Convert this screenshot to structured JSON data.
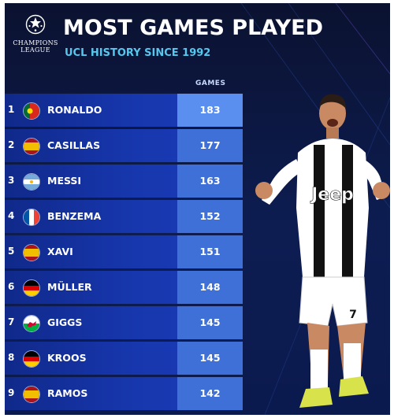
{
  "logo": {
    "line1": "CHAMPIONS",
    "line2": "LEAGUE"
  },
  "title": "MOST GAMES PLAYED",
  "subtitle": "UCL HISTORY SINCE 1992",
  "column_header": "GAMES",
  "rows": [
    {
      "rank": "1",
      "name": "RONALDO",
      "games": "183",
      "flag": "portugal"
    },
    {
      "rank": "2",
      "name": "CASILLAS",
      "games": "177",
      "flag": "spain"
    },
    {
      "rank": "3",
      "name": "MESSI",
      "games": "163",
      "flag": "argentina"
    },
    {
      "rank": "4",
      "name": "BENZEMA",
      "games": "152",
      "flag": "france"
    },
    {
      "rank": "5",
      "name": "XAVI",
      "games": "151",
      "flag": "spain"
    },
    {
      "rank": "6",
      "name": "MÜLLER",
      "games": "148",
      "flag": "germany"
    },
    {
      "rank": "7",
      "name": "GIGGS",
      "games": "145",
      "flag": "wales"
    },
    {
      "rank": "8",
      "name": "KROOS",
      "games": "145",
      "flag": "germany"
    },
    {
      "rank": "9",
      "name": "RAMOS",
      "games": "142",
      "flag": "spain"
    }
  ],
  "player_shirt": {
    "sponsor": "Jeep",
    "number": "7"
  },
  "colors": {
    "background": "#0d1d52",
    "row": "#1737ae",
    "value_box": "#3f70d8",
    "subtitle": "#56c8ee"
  }
}
